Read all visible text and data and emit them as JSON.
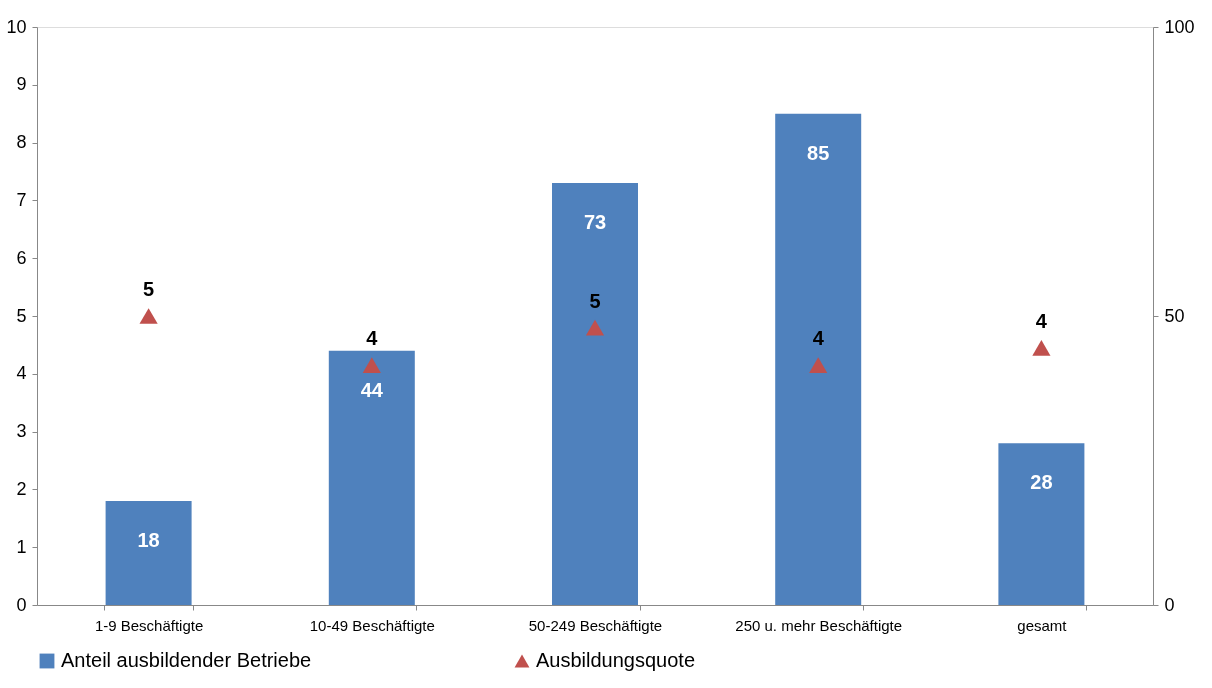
{
  "chart_data": {
    "type": "bar",
    "categories": [
      "1-9 Beschäftigte",
      "10-49 Beschäftigte",
      "50-249 Beschäftigte",
      "250 u. mehr Beschäftigte",
      "gesamt"
    ],
    "series": [
      {
        "name": "Anteil ausbildender Betriebe",
        "axis": "y2",
        "color": "#4f81bd",
        "values": [
          18,
          44,
          73,
          85,
          28
        ],
        "data_labels": true
      },
      {
        "name": "Ausbildungsquote",
        "type": "scatter",
        "marker": "triangle",
        "color": "#c0504d",
        "values": [
          5.0,
          4.15,
          4.8,
          4.15,
          4.45
        ],
        "value_labels": [
          "5",
          "4",
          "5",
          "4",
          "4"
        ]
      }
    ],
    "ylim": [
      0,
      10
    ],
    "yticks": [
      0,
      1,
      2,
      3,
      4,
      5,
      6,
      7,
      8,
      9,
      10
    ],
    "y2lim": [
      0,
      100
    ],
    "y2ticks": [
      0,
      50,
      100
    ],
    "grid": false,
    "legend": "bottom"
  }
}
